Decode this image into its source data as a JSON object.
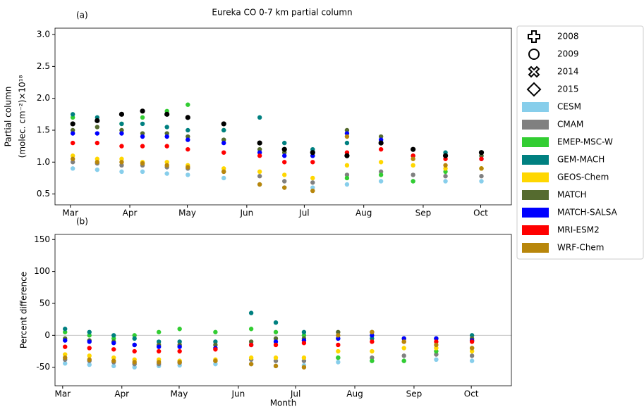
{
  "chart_data": [
    {
      "type": "scatter",
      "title": "Eureka CO 0-7 km partial column",
      "label": "(a)",
      "ylabel": [
        "Partial column",
        "(molec. cm⁻²)×10¹⁸"
      ],
      "xlim": [
        52,
        290
      ],
      "ylim": [
        0.33,
        3.1
      ],
      "xticks": [
        {
          "value": 60,
          "label": "Mar"
        },
        {
          "value": 91,
          "label": "Apr"
        },
        {
          "value": 121,
          "label": "May"
        },
        {
          "value": 152,
          "label": "Jun"
        },
        {
          "value": 182,
          "label": "Jul"
        },
        {
          "value": 213,
          "label": "Aug"
        },
        {
          "value": 244,
          "label": "Sep"
        },
        {
          "value": 274,
          "label": "Oct"
        }
      ],
      "yticks": [
        0.5,
        {
          "value": 1,
          "label": "1.0"
        },
        1.5,
        {
          "value": 2,
          "label": "2.0"
        },
        2.5,
        {
          "value": 3,
          "label": "3.0"
        }
      ],
      "legend_years": [
        "2008",
        "2009",
        "2014",
        "2015"
      ],
      "x": [
        62,
        74,
        86,
        98,
        110,
        122,
        140,
        158,
        172,
        186,
        205,
        222,
        238,
        256,
        274
      ],
      "observations": {
        "color": "#000000",
        "values": [
          1.6,
          1.65,
          1.75,
          1.8,
          1.75,
          1.7,
          1.6,
          1.3,
          1.2,
          1.15,
          1.1,
          1.3,
          1.2,
          1.1,
          1.15
        ]
      },
      "series": [
        {
          "name": "CESM",
          "color": "#87ceeb",
          "values": [
            0.9,
            0.88,
            0.85,
            0.85,
            0.82,
            0.8,
            0.75,
            0.65,
            0.6,
            0.6,
            0.65,
            0.7,
            0.7,
            0.7,
            0.7
          ]
        },
        {
          "name": "CMAM",
          "color": "#808080",
          "values": [
            1.0,
            0.98,
            0.95,
            0.95,
            0.92,
            0.9,
            0.85,
            0.78,
            0.7,
            0.68,
            0.8,
            0.85,
            0.8,
            0.78,
            0.78
          ]
        },
        {
          "name": "EMEP-MSC-W",
          "color": "#32cd32",
          "values": [
            1.7,
            1.65,
            1.6,
            1.7,
            1.8,
            1.9,
            1.5,
            1.3,
            1.2,
            1.1,
            0.75,
            0.8,
            0.7,
            0.85,
            0.9
          ]
        },
        {
          "name": "GEM-MACH",
          "color": "#008080",
          "values": [
            1.75,
            1.7,
            1.6,
            1.6,
            1.55,
            1.5,
            1.5,
            1.7,
            1.3,
            1.2,
            1.3,
            1.3,
            1.2,
            1.15,
            1.1
          ]
        },
        {
          "name": "GEOS-Chem",
          "color": "#ffd700",
          "values": [
            1.1,
            1.05,
            1.05,
            1.0,
            1.0,
            0.95,
            0.9,
            0.85,
            0.8,
            0.75,
            0.95,
            1.0,
            0.95,
            0.9,
            0.9
          ]
        },
        {
          "name": "MATCH",
          "color": "#556b2f",
          "values": [
            1.5,
            1.55,
            1.5,
            1.45,
            1.45,
            1.4,
            1.35,
            1.2,
            1.15,
            1.1,
            1.5,
            1.4,
            1.1,
            1.1,
            1.1
          ]
        },
        {
          "name": "MATCH-SALSA",
          "color": "#0000ff",
          "values": [
            1.45,
            1.45,
            1.45,
            1.4,
            1.4,
            1.35,
            1.3,
            1.15,
            1.1,
            1.1,
            1.45,
            1.35,
            1.2,
            1.1,
            1.05
          ]
        },
        {
          "name": "MRI-ESM2",
          "color": "#ff0000",
          "values": [
            1.3,
            1.3,
            1.25,
            1.25,
            1.25,
            1.2,
            1.15,
            1.1,
            1.0,
            1.0,
            1.15,
            1.2,
            1.1,
            1.05,
            1.05
          ]
        },
        {
          "name": "WRF-Chem",
          "color": "#b8860b",
          "values": [
            1.05,
            1.0,
            1.0,
            0.98,
            0.95,
            0.92,
            0.85,
            0.65,
            0.6,
            0.55,
            1.4,
            1.3,
            1.05,
            0.95,
            0.9
          ]
        }
      ]
    },
    {
      "type": "scatter",
      "label": "(b)",
      "ylabel": [
        "Percent difference"
      ],
      "xlabel": "Month",
      "xlim": [
        56,
        295
      ],
      "ylim": [
        -79,
        158
      ],
      "xticks": [
        {
          "value": 60,
          "label": "Mar"
        },
        {
          "value": 91,
          "label": "Apr"
        },
        {
          "value": 121,
          "label": "May"
        },
        {
          "value": 152,
          "label": "Jun"
        },
        {
          "value": 182,
          "label": "Jul"
        },
        {
          "value": 213,
          "label": "Aug"
        },
        {
          "value": 244,
          "label": "Sep"
        },
        {
          "value": 274,
          "label": "Oct"
        }
      ],
      "yticks": [
        -50,
        0,
        50,
        100,
        150
      ],
      "zero_line": true,
      "x": [
        62,
        74,
        86,
        98,
        110,
        122,
        140,
        158,
        172,
        186,
        205,
        222,
        238,
        256,
        274
      ],
      "series": [
        {
          "color": "#87ceeb",
          "values": [
            -44,
            -46,
            -48,
            -50,
            -48,
            -47,
            -45,
            -45,
            -48,
            -47,
            -42,
            -40,
            -40,
            -38,
            -40
          ]
        },
        {
          "color": "#808080",
          "values": [
            -38,
            -40,
            -42,
            -45,
            -45,
            -43,
            -40,
            -38,
            -40,
            -40,
            -35,
            -35,
            -32,
            -30,
            -32
          ]
        },
        {
          "color": "#32cd32",
          "values": [
            5,
            0,
            -5,
            0,
            5,
            10,
            5,
            10,
            5,
            0,
            -35,
            -40,
            -40,
            -25,
            -20
          ]
        },
        {
          "color": "#008080",
          "values": [
            10,
            5,
            0,
            -5,
            -10,
            -10,
            -10,
            35,
            20,
            5,
            -5,
            -5,
            -5,
            -5,
            0
          ]
        },
        {
          "color": "#ffd700",
          "values": [
            -30,
            -32,
            -35,
            -38,
            -38,
            -40,
            -38,
            -35,
            -35,
            -35,
            -25,
            -25,
            -20,
            -20,
            -25
          ]
        },
        {
          "color": "#556b2f",
          "values": [
            -5,
            -8,
            -10,
            -15,
            -15,
            -15,
            -15,
            -10,
            -5,
            -5,
            5,
            5,
            -5,
            -5,
            -5
          ]
        },
        {
          "color": "#0000ff",
          "values": [
            -8,
            -10,
            -12,
            -15,
            -18,
            -18,
            -20,
            -15,
            -10,
            -8,
            -5,
            0,
            -5,
            -5,
            -8
          ]
        },
        {
          "color": "#ff0000",
          "values": [
            -18,
            -20,
            -22,
            -25,
            -25,
            -25,
            -22,
            -15,
            -15,
            -12,
            -15,
            -10,
            -10,
            -10,
            -10
          ]
        },
        {
          "color": "#b8860b",
          "values": [
            -35,
            -38,
            -40,
            -42,
            -42,
            -42,
            -40,
            -45,
            -48,
            -50,
            0,
            5,
            -10,
            -15,
            -20
          ]
        }
      ]
    }
  ]
}
